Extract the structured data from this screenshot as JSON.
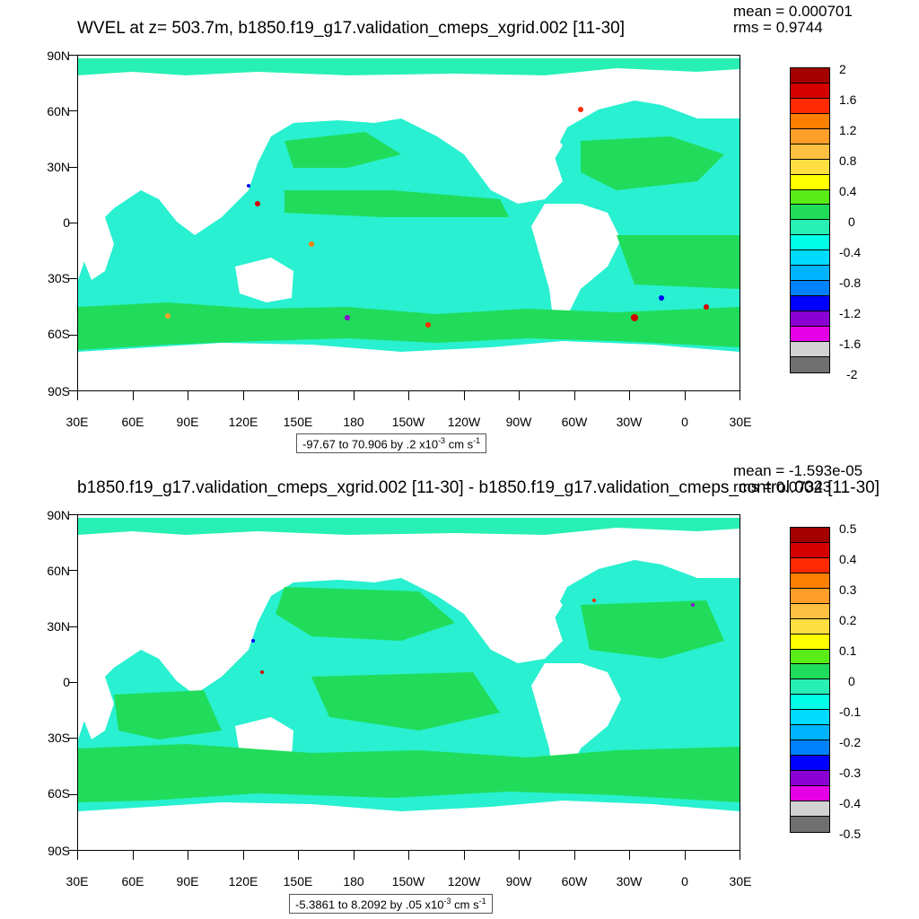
{
  "panels": [
    {
      "id": "top",
      "title": "WVEL at z= 503.7m, b1850.f19_g17.validation_cmeps_xgrid.002 [11-30]",
      "mean": "mean = 0.000701",
      "rms": "rms = 0.9744",
      "info_range": "-97.67 to 70.906 by .2 x10",
      "info_exp": "-3",
      "info_units": " cm s",
      "info_units_exp": "-1",
      "colorbar_labels": [
        "2",
        "1.6",
        "1.2",
        "0.8",
        "0.4",
        "0",
        "-0.4",
        "-0.8",
        "-1.2",
        "-1.6",
        "-2"
      ]
    },
    {
      "id": "bottom",
      "title": "b1850.f19_g17.validation_cmeps_xgrid.002 [11-30] - b1850.f19_g17.validation_cmeps_control.002 [11-30]",
      "mean": "mean = -1.593e-05",
      "rms": "rms = 0.07343",
      "info_range": "-5.3861 to 8.2092 by .05 x10",
      "info_exp": "-3",
      "info_units": " cm s",
      "info_units_exp": "-1",
      "colorbar_labels": [
        "0.5",
        "0.4",
        "0.3",
        "0.2",
        "0.1",
        "0",
        "-0.1",
        "-0.2",
        "-0.3",
        "-0.4",
        "-0.5"
      ]
    }
  ],
  "lat_labels": [
    "90N",
    "60N",
    "30N",
    "0",
    "30S",
    "60S",
    "90S"
  ],
  "lon_labels": [
    "30E",
    "60E",
    "90E",
    "120E",
    "150E",
    "180",
    "150W",
    "120W",
    "90W",
    "60W",
    "30W",
    "0",
    "30E"
  ],
  "colorbar_colors": [
    "#a50000",
    "#d40000",
    "#ff2a00",
    "#ff7f00",
    "#ff9f2a",
    "#ffbf40",
    "#ffdf40",
    "#ffff00",
    "#5aec16",
    "#20dc5a",
    "#28f0b4",
    "#00ffe6",
    "#00dcff",
    "#00b4ff",
    "#0082ff",
    "#0000ff",
    "#8a00d2",
    "#e600e6",
    "#d2d2d2",
    "#707070"
  ],
  "colors": {
    "land": "#ffffff",
    "ocean_green": "#20dc5a",
    "ocean_cyan": "#28f0d0"
  }
}
